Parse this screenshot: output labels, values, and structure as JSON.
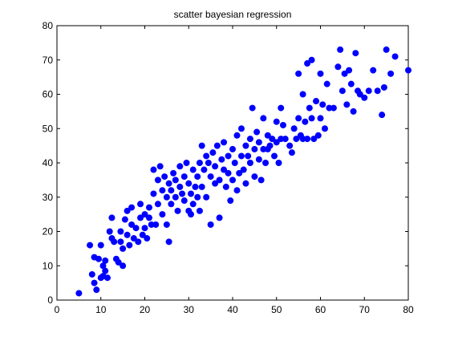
{
  "chart_data": {
    "type": "scatter",
    "title": "scatter bayesian regression",
    "xlabel": "",
    "ylabel": "",
    "xlim": [
      0,
      80
    ],
    "ylim": [
      0,
      80
    ],
    "xticks": [
      0,
      10,
      20,
      30,
      40,
      50,
      60,
      70,
      80
    ],
    "yticks": [
      0,
      10,
      20,
      30,
      40,
      50,
      60,
      70,
      80
    ],
    "grid": false,
    "marker_color": "#0000ff",
    "marker": "filled-circle",
    "points": [
      [
        5,
        2
      ],
      [
        7.5,
        16
      ],
      [
        8,
        7.5
      ],
      [
        8.5,
        12.5
      ],
      [
        8.5,
        5
      ],
      [
        9,
        3
      ],
      [
        9.5,
        12
      ],
      [
        10,
        16
      ],
      [
        10,
        6.5
      ],
      [
        10.5,
        10
      ],
      [
        10.5,
        7
      ],
      [
        11,
        8.5
      ],
      [
        11,
        11.5
      ],
      [
        11.5,
        6.5
      ],
      [
        12,
        20
      ],
      [
        12.5,
        24
      ],
      [
        12.5,
        18
      ],
      [
        13,
        17
      ],
      [
        13.5,
        12
      ],
      [
        14,
        11
      ],
      [
        14.5,
        17
      ],
      [
        14.5,
        20
      ],
      [
        15,
        10
      ],
      [
        15,
        15
      ],
      [
        15.5,
        23.5
      ],
      [
        16,
        26
      ],
      [
        16,
        19
      ],
      [
        16.5,
        16
      ],
      [
        17,
        22
      ],
      [
        17,
        27
      ],
      [
        17.5,
        18
      ],
      [
        18,
        21
      ],
      [
        18.5,
        17
      ],
      [
        19,
        24
      ],
      [
        19,
        28
      ],
      [
        19.5,
        19
      ],
      [
        20,
        25
      ],
      [
        20,
        21
      ],
      [
        20.5,
        18
      ],
      [
        21,
        24
      ],
      [
        21,
        27
      ],
      [
        21.5,
        22
      ],
      [
        22,
        31
      ],
      [
        22,
        38
      ],
      [
        22.5,
        22
      ],
      [
        23,
        28
      ],
      [
        23,
        35
      ],
      [
        23.5,
        39
      ],
      [
        24,
        25
      ],
      [
        24,
        32
      ],
      [
        24.5,
        36
      ],
      [
        25,
        22
      ],
      [
        25,
        30
      ],
      [
        25.5,
        17
      ],
      [
        25.5,
        34
      ],
      [
        26,
        28
      ],
      [
        26,
        32
      ],
      [
        26.5,
        37
      ],
      [
        27,
        30
      ],
      [
        27,
        35
      ],
      [
        27.5,
        26
      ],
      [
        28,
        33
      ],
      [
        28,
        39
      ],
      [
        28.5,
        31
      ],
      [
        29,
        29
      ],
      [
        29,
        36
      ],
      [
        29.5,
        40
      ],
      [
        30,
        26
      ],
      [
        30,
        34
      ],
      [
        30.5,
        25
      ],
      [
        30.5,
        31
      ],
      [
        31,
        38
      ],
      [
        31,
        28
      ],
      [
        31.5,
        33
      ],
      [
        32,
        30
      ],
      [
        32,
        36
      ],
      [
        32.5,
        40
      ],
      [
        32.5,
        26
      ],
      [
        33,
        45
      ],
      [
        33,
        33
      ],
      [
        33.5,
        38
      ],
      [
        34,
        42
      ],
      [
        34,
        30
      ],
      [
        34.5,
        40
      ],
      [
        35,
        36
      ],
      [
        35,
        22
      ],
      [
        35.5,
        43
      ],
      [
        36,
        34
      ],
      [
        36,
        39
      ],
      [
        36.5,
        45
      ],
      [
        37,
        24
      ],
      [
        37,
        35
      ],
      [
        37.5,
        41
      ],
      [
        38,
        46
      ],
      [
        38,
        38
      ],
      [
        38.5,
        33
      ],
      [
        39,
        42
      ],
      [
        39,
        37
      ],
      [
        39.5,
        29
      ],
      [
        40,
        35
      ],
      [
        40,
        44
      ],
      [
        40.5,
        40
      ],
      [
        41,
        32
      ],
      [
        41,
        48
      ],
      [
        41.5,
        37
      ],
      [
        42,
        42
      ],
      [
        42,
        50
      ],
      [
        42.5,
        38
      ],
      [
        43,
        45
      ],
      [
        43,
        34
      ],
      [
        43.5,
        42
      ],
      [
        44,
        47
      ],
      [
        44,
        40
      ],
      [
        44.5,
        56
      ],
      [
        45,
        36
      ],
      [
        45,
        44
      ],
      [
        45.5,
        49
      ],
      [
        46,
        41
      ],
      [
        46,
        46
      ],
      [
        46.5,
        35
      ],
      [
        47,
        44
      ],
      [
        47,
        53
      ],
      [
        47.5,
        40
      ],
      [
        48,
        48
      ],
      [
        48,
        44
      ],
      [
        48.5,
        45
      ],
      [
        49,
        47
      ],
      [
        49.5,
        42
      ],
      [
        50,
        52
      ],
      [
        50,
        46
      ],
      [
        50.5,
        40
      ],
      [
        51,
        56
      ],
      [
        51,
        47
      ],
      [
        51.5,
        51
      ],
      [
        52,
        47
      ],
      [
        53,
        45
      ],
      [
        53.5,
        43
      ],
      [
        54,
        50
      ],
      [
        54.5,
        47
      ],
      [
        55,
        66
      ],
      [
        55,
        53
      ],
      [
        55.5,
        48
      ],
      [
        56,
        60
      ],
      [
        56,
        47
      ],
      [
        56.5,
        52
      ],
      [
        57,
        69
      ],
      [
        57,
        47
      ],
      [
        57.5,
        56
      ],
      [
        58,
        70
      ],
      [
        58,
        53
      ],
      [
        58.5,
        47
      ],
      [
        59,
        58
      ],
      [
        59.5,
        48
      ],
      [
        60,
        66
      ],
      [
        60,
        53
      ],
      [
        60.5,
        57
      ],
      [
        61,
        50
      ],
      [
        61.5,
        63
      ],
      [
        62,
        56
      ],
      [
        63,
        56
      ],
      [
        64,
        68
      ],
      [
        64.5,
        73
      ],
      [
        65,
        61
      ],
      [
        65.5,
        66
      ],
      [
        66,
        57
      ],
      [
        66.5,
        67
      ],
      [
        67,
        63
      ],
      [
        67.5,
        55
      ],
      [
        68,
        72
      ],
      [
        68.5,
        61
      ],
      [
        69,
        60
      ],
      [
        70,
        59
      ],
      [
        71,
        61
      ],
      [
        72,
        67
      ],
      [
        73,
        61
      ],
      [
        74,
        54
      ],
      [
        74.5,
        62
      ],
      [
        75,
        73
      ],
      [
        76,
        66
      ],
      [
        77,
        71
      ],
      [
        80,
        67
      ]
    ]
  }
}
